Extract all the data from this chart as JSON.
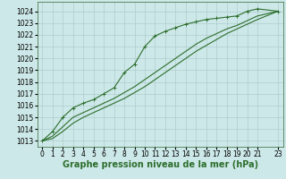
{
  "background_color": "#cde8e8",
  "grid_color": "#b0cccc",
  "line_color": "#2d6e2d",
  "xlabel": "Graphe pression niveau de la mer (hPa)",
  "xlabel_fontsize": 7,
  "xtick_fontsize": 5.5,
  "ytick_fontsize": 5.5,
  "xlim": [
    -0.5,
    23.5
  ],
  "ylim": [
    1012.5,
    1024.8
  ],
  "yticks": [
    1013,
    1014,
    1015,
    1016,
    1017,
    1018,
    1019,
    1020,
    1021,
    1022,
    1023,
    1024
  ],
  "xticks": [
    0,
    1,
    2,
    3,
    4,
    5,
    6,
    7,
    8,
    9,
    10,
    11,
    12,
    13,
    14,
    15,
    16,
    17,
    18,
    19,
    20,
    21,
    23
  ],
  "series1_x": [
    0,
    1,
    2,
    3,
    4,
    5,
    6,
    7,
    8,
    9,
    10,
    11,
    12,
    13,
    14,
    15,
    16,
    17,
    18,
    19,
    20,
    21,
    23
  ],
  "series1_y": [
    1013.0,
    1013.8,
    1015.0,
    1015.8,
    1016.2,
    1016.5,
    1017.0,
    1017.5,
    1018.8,
    1019.5,
    1021.0,
    1021.9,
    1022.3,
    1022.6,
    1022.9,
    1023.1,
    1023.3,
    1023.4,
    1023.5,
    1023.6,
    1024.0,
    1024.2,
    1024.0
  ],
  "series2_x": [
    0,
    1,
    2,
    3,
    4,
    5,
    6,
    7,
    8,
    9,
    10,
    11,
    12,
    13,
    14,
    15,
    16,
    17,
    18,
    19,
    20,
    21,
    23
  ],
  "series2_y": [
    1013.0,
    1013.4,
    1014.2,
    1015.0,
    1015.4,
    1015.8,
    1016.2,
    1016.6,
    1017.1,
    1017.6,
    1018.2,
    1018.8,
    1019.4,
    1020.0,
    1020.6,
    1021.2,
    1021.7,
    1022.1,
    1022.5,
    1022.8,
    1023.2,
    1023.6,
    1024.0
  ],
  "series3_x": [
    0,
    1,
    2,
    3,
    4,
    5,
    6,
    7,
    8,
    9,
    10,
    11,
    12,
    13,
    14,
    15,
    16,
    17,
    18,
    19,
    20,
    21,
    23
  ],
  "series3_y": [
    1013.0,
    1013.2,
    1013.8,
    1014.5,
    1015.0,
    1015.4,
    1015.8,
    1016.2,
    1016.6,
    1017.1,
    1017.6,
    1018.2,
    1018.8,
    1019.4,
    1020.0,
    1020.6,
    1021.1,
    1021.6,
    1022.1,
    1022.5,
    1022.9,
    1023.3,
    1024.0
  ]
}
